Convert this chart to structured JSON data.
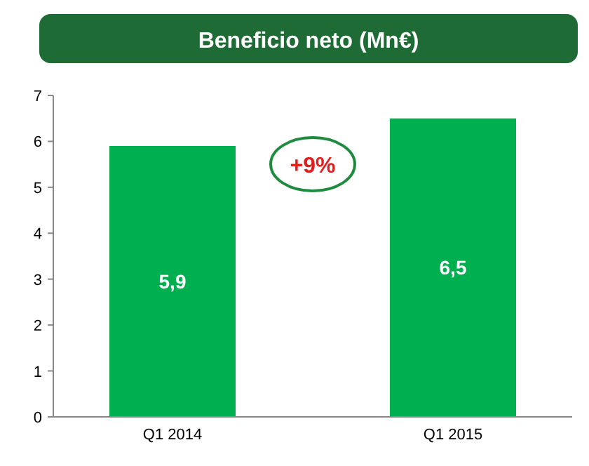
{
  "chart_data": {
    "type": "bar",
    "title": "Beneficio neto (Mn€)",
    "categories": [
      "Q1 2014",
      "Q1 2015"
    ],
    "values": [
      5.9,
      6.5
    ],
    "color": "#00b050",
    "value_labels": [
      "5,9",
      "6,5"
    ],
    "ylim": [
      0,
      7
    ],
    "yticks": [
      0,
      1,
      2,
      3,
      4,
      5,
      6,
      7
    ],
    "grid": false,
    "annotations": [
      "+9%"
    ]
  }
}
